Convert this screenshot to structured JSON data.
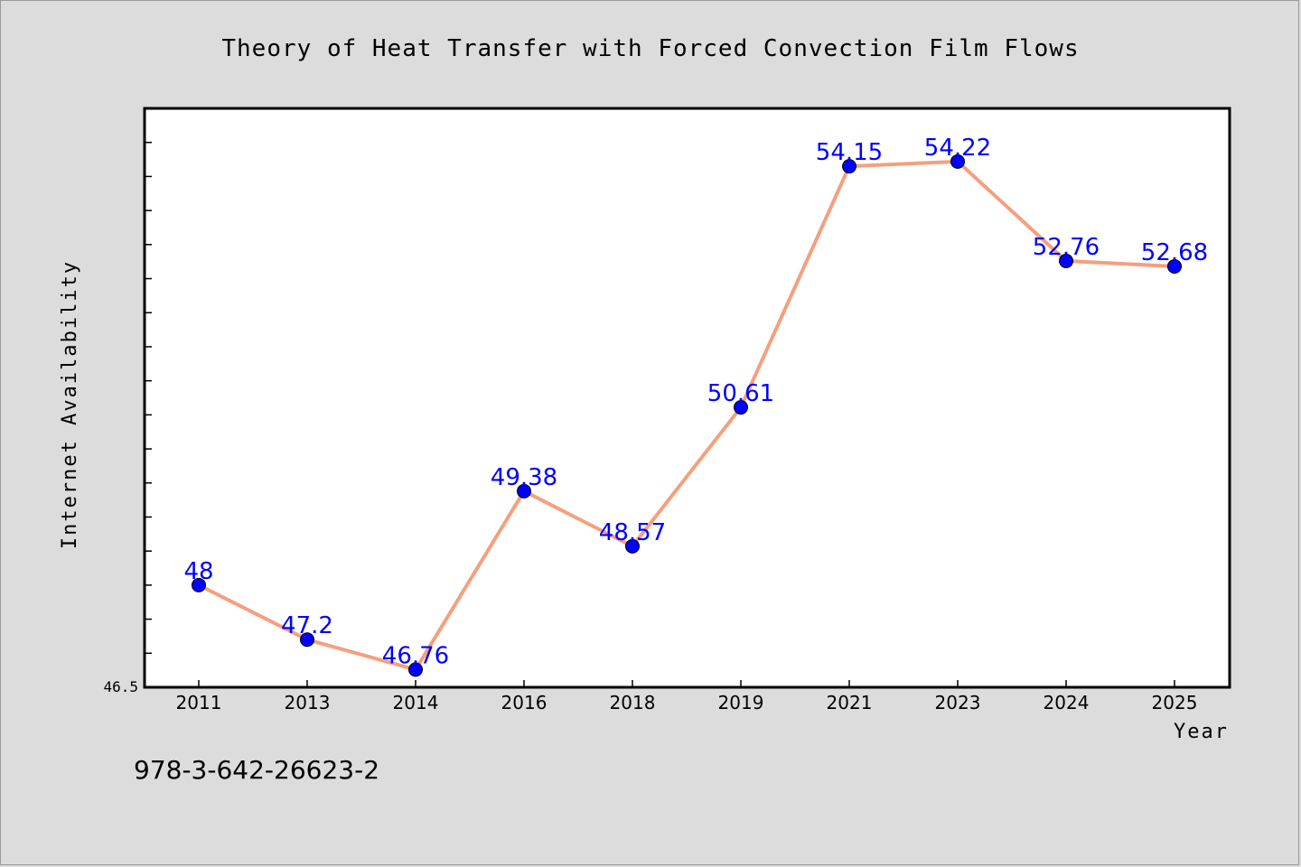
{
  "chart_data": {
    "type": "line",
    "title": "Theory of Heat Transfer with Forced Convection Film Flows",
    "xlabel": "Year",
    "ylabel": "Internet Availability",
    "categories": [
      "2011",
      "2013",
      "2014",
      "2016",
      "2018",
      "2019",
      "2021",
      "2023",
      "2024",
      "2025"
    ],
    "series": [
      {
        "values": [
          48,
          47.2,
          46.76,
          49.38,
          48.57,
          50.61,
          54.15,
          54.22,
          52.76,
          52.68
        ],
        "labels": [
          "48",
          "47.2",
          "46.76",
          "49.38",
          "48.57",
          "50.61",
          "54.15",
          "54.22",
          "52.76",
          "52.68"
        ]
      }
    ],
    "ylim": [
      46.5,
      55.0
    ],
    "y_tick_labels": [
      "46.5"
    ],
    "grid": false,
    "line_color": "#f4a07e",
    "marker_color": "#0000ff",
    "label_color": "#0000ff",
    "background_color": "#dcdcdc",
    "plot_background": "#ffffff"
  },
  "footer": {
    "isbn": "978-3-642-26623-2"
  }
}
